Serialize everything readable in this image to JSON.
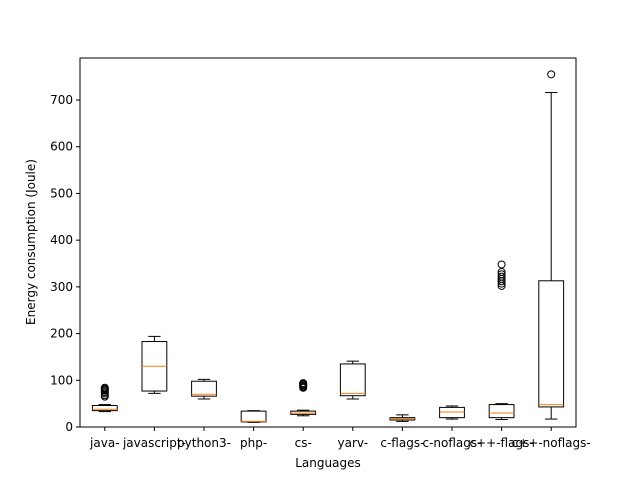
{
  "chart_data": {
    "type": "box",
    "xlabel": "Languages",
    "ylabel": "Energy consumption (Joule)",
    "ylim": [
      0,
      790
    ],
    "yticks": [
      0,
      100,
      200,
      300,
      400,
      500,
      600,
      700
    ],
    "grid": false,
    "colors": {
      "box": "#000000",
      "median": "#ff7f0e"
    },
    "categories": [
      "java-",
      "javascript-",
      "python3-",
      "php-",
      "cs-",
      "yarv-",
      "c-flags-",
      "c-noflags-",
      "c++-flags-",
      "c++-noflags-"
    ],
    "boxes": [
      {
        "name": "java-",
        "whisker_low": 33,
        "q1": 35,
        "median": 38,
        "q3": 46,
        "whisker_high": 48,
        "outliers": [
          65,
          68,
          72,
          75,
          78,
          80,
          82,
          84
        ]
      },
      {
        "name": "javascript-",
        "whisker_low": 72,
        "q1": 77,
        "median": 130,
        "q3": 183,
        "whisker_high": 194,
        "outliers": []
      },
      {
        "name": "python3-",
        "whisker_low": 60,
        "q1": 66,
        "median": 70,
        "q3": 98,
        "whisker_high": 102,
        "outliers": []
      },
      {
        "name": "php-",
        "whisker_low": 10,
        "q1": 11,
        "median": 12,
        "q3": 34,
        "whisker_high": 35,
        "outliers": []
      },
      {
        "name": "cs-",
        "whisker_low": 24,
        "q1": 27,
        "median": 30,
        "q3": 34,
        "whisker_high": 36,
        "outliers": [
          84,
          86,
          88,
          90,
          92,
          94
        ]
      },
      {
        "name": "yarv-",
        "whisker_low": 60,
        "q1": 67,
        "median": 72,
        "q3": 135,
        "whisker_high": 141,
        "outliers": []
      },
      {
        "name": "c-flags-",
        "whisker_low": 12,
        "q1": 15,
        "median": 18,
        "q3": 20,
        "whisker_high": 26,
        "outliers": []
      },
      {
        "name": "c-noflags-",
        "whisker_low": 17,
        "q1": 20,
        "median": 32,
        "q3": 42,
        "whisker_high": 45,
        "outliers": []
      },
      {
        "name": "c++-flags-",
        "whisker_low": 16,
        "q1": 20,
        "median": 30,
        "q3": 48,
        "whisker_high": 50,
        "outliers": [
          302,
          307,
          312,
          317,
          322,
          327,
          332,
          348
        ]
      },
      {
        "name": "c++-noflags-",
        "whisker_low": 17,
        "q1": 43,
        "median": 48,
        "q3": 313,
        "whisker_high": 716,
        "outliers": [
          755
        ]
      }
    ]
  }
}
